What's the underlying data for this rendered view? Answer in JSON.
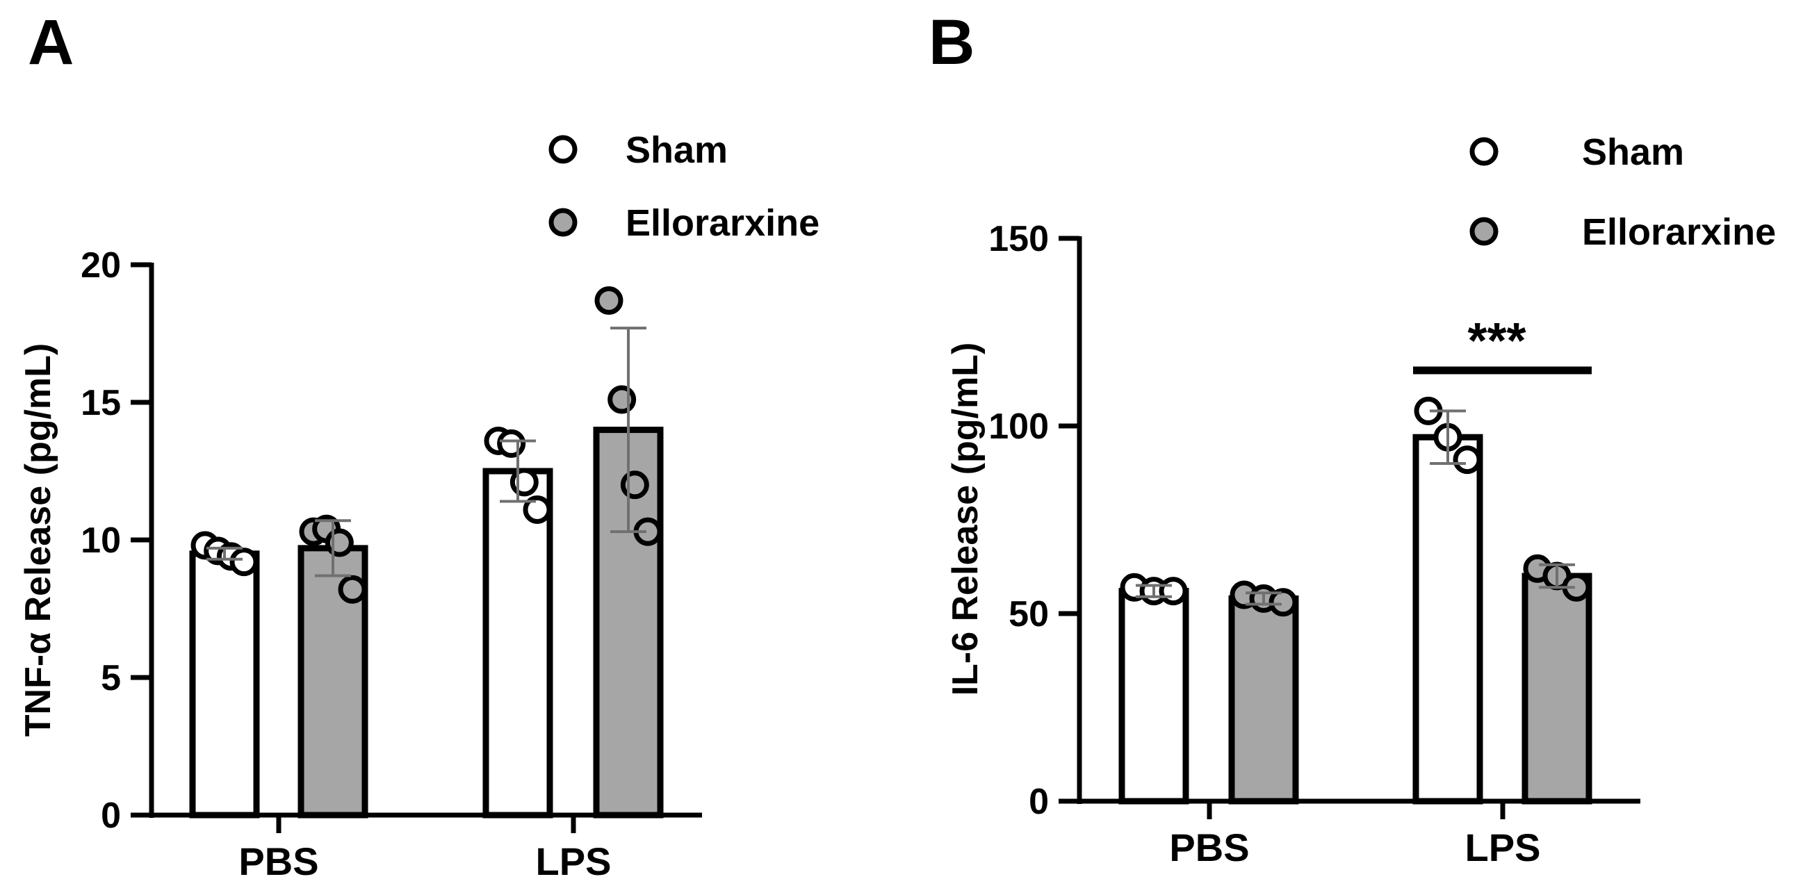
{
  "chart_data": [
    {
      "panel": "A",
      "type": "bar",
      "ylabel": "TNF-α Release (pg/mL)",
      "ylim": [
        0,
        20
      ],
      "yticks": [
        "0",
        "5",
        "10",
        "15",
        "20"
      ],
      "categories": [
        "PBS",
        "LPS"
      ],
      "series": [
        {
          "name": "Sham",
          "color": "#ffffff",
          "values": [
            9.5,
            12.5
          ],
          "sd": [
            0.2,
            1.1
          ],
          "points": [
            [
              9.8,
              9.6,
              9.4,
              9.2
            ],
            [
              13.6,
              13.5,
              12.1,
              11.1
            ]
          ]
        },
        {
          "name": "Ellorarxine",
          "color": "#a6a6a6",
          "values": [
            9.7,
            14.0
          ],
          "sd": [
            1.0,
            3.7
          ],
          "points": [
            [
              10.3,
              10.4,
              9.9,
              8.2
            ],
            [
              18.7,
              15.1,
              12.0,
              10.3
            ]
          ]
        }
      ],
      "legend_position": "top-right",
      "grid": false,
      "significance": []
    },
    {
      "panel": "B",
      "type": "bar",
      "ylabel": "IL-6 Release (pg/mL)",
      "ylim": [
        0,
        150
      ],
      "yticks": [
        "0",
        "50",
        "100",
        "150"
      ],
      "categories": [
        "PBS",
        "LPS"
      ],
      "series": [
        {
          "name": "Sham",
          "color": "#ffffff",
          "values": [
            56,
            97
          ],
          "sd": [
            1.5,
            7
          ],
          "points": [
            [
              57,
              56,
              56
            ],
            [
              104,
              97,
              91
            ]
          ]
        },
        {
          "name": "Ellorarxine",
          "color": "#a6a6a6",
          "values": [
            54,
            60
          ],
          "sd": [
            1.5,
            3
          ],
          "points": [
            [
              55,
              54,
              53
            ],
            [
              62,
              60,
              57
            ]
          ]
        }
      ],
      "legend_position": "top-right",
      "grid": false,
      "significance": [
        {
          "category": "LPS",
          "label": "***"
        }
      ]
    }
  ]
}
